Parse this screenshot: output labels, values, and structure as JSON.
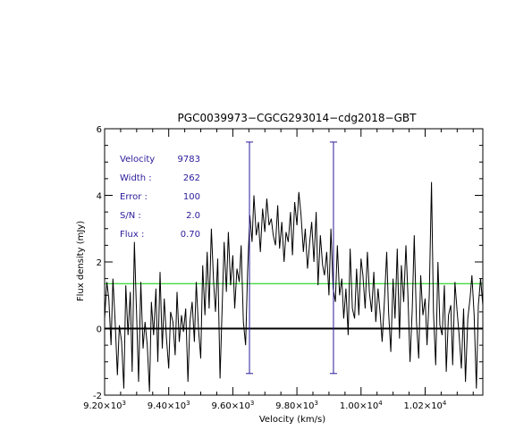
{
  "chart_data": {
    "type": "line",
    "title": "PGC0039973−CGCG293014−cdg2018−GBT",
    "xlabel": "Velocity (km/s)",
    "ylabel": "Flux density (mJy)",
    "xlim": [
      9200,
      10380
    ],
    "ylim": [
      -2,
      6
    ],
    "x_ticks": [
      {
        "value": 9200,
        "mant": "9.20",
        "exp": "3"
      },
      {
        "value": 9400,
        "mant": "9.40",
        "exp": "3"
      },
      {
        "value": 9600,
        "mant": "9.60",
        "exp": "3"
      },
      {
        "value": 9800,
        "mant": "9.80",
        "exp": "3"
      },
      {
        "value": 10000,
        "mant": "1.00",
        "exp": "4"
      },
      {
        "value": 10200,
        "mant": "1.02",
        "exp": "4"
      }
    ],
    "y_ticks": [
      -2,
      0,
      2,
      4,
      6
    ],
    "grid": false,
    "colors": {
      "spectrum": "#000000",
      "baseline": "#000000",
      "reference_line": "#00cc00",
      "markers": "#2a1a9a",
      "annotation_text": "#2a1a9a"
    },
    "annotations": [
      {
        "label": "Velocity",
        "value": "9783"
      },
      {
        "label": "Width :",
        "value": "262"
      },
      {
        "label": "Error :",
        "value": "100"
      },
      {
        "label": "S/N :",
        "value": "2.0"
      },
      {
        "label": "Flux :",
        "value": "0.70"
      }
    ],
    "horizontal_lines": [
      {
        "name": "zero-line",
        "y": 0
      },
      {
        "name": "reference-line",
        "y": 1.35
      }
    ],
    "markers": [
      {
        "x": 9652,
        "y_top": 5.6,
        "y_bottom": -1.35
      },
      {
        "x": 9914,
        "y_top": 5.6,
        "y_bottom": -1.35
      }
    ],
    "series": [
      {
        "x": [
          9200,
          9207,
          9213,
          9220,
          9226,
          9233,
          9240,
          9246,
          9253,
          9260,
          9266,
          9273,
          9280,
          9286,
          9293,
          9300,
          9306,
          9313,
          9320,
          9326,
          9333,
          9340,
          9346,
          9353,
          9360,
          9366,
          9373,
          9380,
          9386,
          9393,
          9400,
          9406,
          9413,
          9420,
          9426,
          9433,
          9440,
          9446,
          9453,
          9460,
          9466,
          9473,
          9480,
          9486,
          9493,
          9500,
          9506,
          9513,
          9520,
          9526,
          9533,
          9540,
          9546,
          9553,
          9560,
          9566,
          9573,
          9580,
          9586,
          9593,
          9600,
          9606,
          9613,
          9620,
          9626,
          9633,
          9640,
          9646,
          9653,
          9660,
          9666,
          9673,
          9680,
          9686,
          9693,
          9700,
          9706,
          9713,
          9720,
          9726,
          9733,
          9740,
          9746,
          9753,
          9760,
          9766,
          9773,
          9780,
          9786,
          9793,
          9800,
          9806,
          9813,
          9820,
          9826,
          9833,
          9840,
          9846,
          9853,
          9860,
          9866,
          9873,
          9880,
          9886,
          9893,
          9900,
          9906,
          9913,
          9920,
          9926,
          9933,
          9940,
          9946,
          9953,
          9960,
          9966,
          9973,
          9980,
          9986,
          9993,
          10000,
          10006,
          10013,
          10020,
          10026,
          10033,
          10040,
          10046,
          10053,
          10060,
          10066,
          10073,
          10080,
          10086,
          10093,
          10100,
          10106,
          10113,
          10120,
          10126,
          10133,
          10140,
          10146,
          10153,
          10160,
          10166,
          10173,
          10180,
          10186,
          10193,
          10200,
          10206,
          10213,
          10220,
          10226,
          10233,
          10240,
          10246,
          10253,
          10260,
          10266,
          10273,
          10280,
          10286,
          10293,
          10300,
          10306,
          10313,
          10320,
          10326,
          10333,
          10340,
          10346,
          10353,
          10360,
          10366,
          10373,
          10380
        ],
        "values": [
          0.3,
          1.4,
          0.9,
          -0.5,
          1.5,
          0.2,
          -1.4,
          0.1,
          -0.4,
          -1.8,
          1.3,
          -0.2,
          1.1,
          -1.3,
          2.6,
          0.4,
          -1.6,
          1.4,
          -0.6,
          0.2,
          -0.5,
          -1.9,
          0.8,
          -0.2,
          1.2,
          -1.0,
          1.7,
          -0.6,
          0.9,
          -0.3,
          -1.2,
          0.5,
          0.2,
          -0.8,
          1.1,
          -0.4,
          0.4,
          -0.1,
          0.6,
          -1.6,
          0.2,
          0.8,
          -0.4,
          1.4,
          0.0,
          -0.9,
          1.9,
          0.4,
          2.3,
          0.6,
          3.0,
          1.4,
          0.5,
          2.1,
          -1.5,
          0.4,
          2.6,
          1.1,
          2.9,
          1.3,
          2.2,
          0.6,
          1.8,
          1.4,
          2.5,
          0.2,
          -0.5,
          1.7,
          3.4,
          2.6,
          4.0,
          2.8,
          3.2,
          2.3,
          3.6,
          2.9,
          3.9,
          3.1,
          3.3,
          2.8,
          2.5,
          3.7,
          2.4,
          3.2,
          2.0,
          2.9,
          2.6,
          3.5,
          2.2,
          3.8,
          3.1,
          4.1,
          3.4,
          2.3,
          3.0,
          1.8,
          2.6,
          3.2,
          2.0,
          3.5,
          1.3,
          2.8,
          1.9,
          1.6,
          2.3,
          1.0,
          3.0,
          1.2,
          0.8,
          2.5,
          1.0,
          1.5,
          0.3,
          1.2,
          -0.2,
          2.4,
          0.6,
          0.3,
          1.8,
          0.4,
          2.1,
          1.6,
          0.6,
          2.3,
          1.1,
          0.5,
          1.7,
          0.2,
          1.2,
          0.4,
          -0.4,
          0.8,
          2.3,
          0.5,
          -0.7,
          1.5,
          0.3,
          2.4,
          -0.3,
          1.9,
          0.8,
          2.5,
          1.1,
          -1.0,
          0.6,
          2.8,
          0.2,
          -0.9,
          1.6,
          0.4,
          0.9,
          -0.5,
          1.0,
          4.4,
          0.5,
          -1.1,
          2.0,
          0.1,
          -0.2,
          1.3,
          -1.3,
          0.4,
          0.7,
          -1.1,
          1.4,
          0.5,
          -0.2,
          -1.2,
          0.6,
          -1.6,
          0.3,
          0.9,
          1.6,
          0.4,
          -1.8,
          0.7,
          1.5,
          0.7
        ]
      }
    ]
  }
}
